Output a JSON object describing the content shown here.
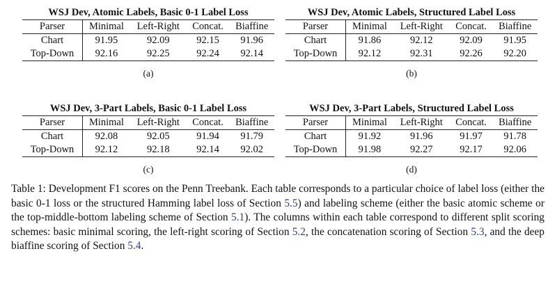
{
  "tables": [
    {
      "title": "WSJ Dev, Atomic Labels, Basic 0-1 Label Loss",
      "columns": [
        "Parser",
        "Minimal",
        "Left-Right",
        "Concat.",
        "Biaffine"
      ],
      "rows": [
        [
          "Chart",
          "91.95",
          "92.09",
          "92.15",
          "91.96"
        ],
        [
          "Top-Down",
          "92.16",
          "92.25",
          "92.24",
          "92.14"
        ]
      ],
      "label": "(a)"
    },
    {
      "title": "WSJ Dev, Atomic Labels, Structured Label Loss",
      "columns": [
        "Parser",
        "Minimal",
        "Left-Right",
        "Concat.",
        "Biaffine"
      ],
      "rows": [
        [
          "Chart",
          "91.86",
          "92.12",
          "92.09",
          "91.95"
        ],
        [
          "Top-Down",
          "92.12",
          "92.31",
          "92.26",
          "92.20"
        ]
      ],
      "label": "(b)"
    },
    {
      "title": "WSJ Dev, 3-Part Labels, Basic 0-1 Label Loss",
      "columns": [
        "Parser",
        "Minimal",
        "Left-Right",
        "Concat.",
        "Biaffine"
      ],
      "rows": [
        [
          "Chart",
          "92.08",
          "92.05",
          "91.94",
          "91.79"
        ],
        [
          "Top-Down",
          "92.12",
          "92.18",
          "92.14",
          "92.02"
        ]
      ],
      "label": "(c)"
    },
    {
      "title": "WSJ Dev, 3-Part Labels, Structured Label Loss",
      "columns": [
        "Parser",
        "Minimal",
        "Left-Right",
        "Concat.",
        "Biaffine"
      ],
      "rows": [
        [
          "Chart",
          "91.92",
          "91.96",
          "91.97",
          "91.78"
        ],
        [
          "Top-Down",
          "91.98",
          "92.27",
          "92.17",
          "92.06"
        ]
      ],
      "label": "(d)"
    }
  ],
  "caption": [
    {
      "text": "Table 1: Development F1 scores on the Penn Treebank. Each table corresponds to a particular choice of label loss (either the basic 0-1 loss or the structured Hamming label loss of Section "
    },
    {
      "ref": "5.5"
    },
    {
      "text": ") and labeling scheme (either the basic atomic scheme or the top-middle-bottom labeling scheme of Section "
    },
    {
      "ref": "5.1"
    },
    {
      "text": "). The columns within each table correspond to different split scoring schemes: basic minimal scoring, the left-right scoring of Section "
    },
    {
      "ref": "5.2"
    },
    {
      "text": ", the concatenation scoring of Section "
    },
    {
      "ref": "5.3"
    },
    {
      "text": ", and the deep biaffine scoring of Section "
    },
    {
      "ref": "5.4"
    },
    {
      "text": "."
    }
  ]
}
